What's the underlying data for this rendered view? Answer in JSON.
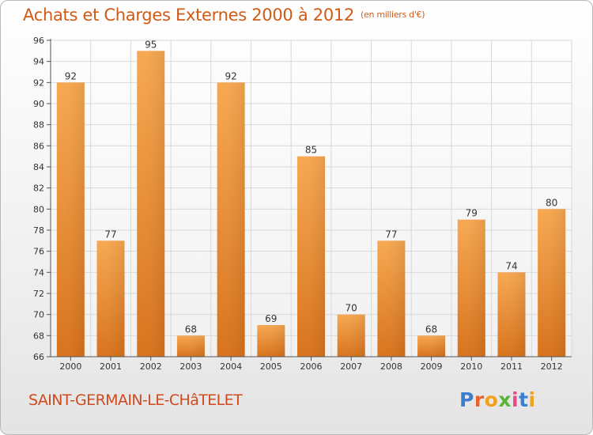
{
  "title": "Achats et Charges Externes 2000 à 2012",
  "subtitle": "(en milliers d'€)",
  "place_name": "SAINT-GERMAIN-LE-CHâTELET",
  "logo_text": "Proxiti",
  "colors": {
    "bar_light": "#f8a850",
    "bar_dark": "#d9731c",
    "title": "#d05a16",
    "grid": "#d8d8d8"
  },
  "chart_data": {
    "type": "bar",
    "title": "Achats et Charges Externes 2000 à 2012",
    "subtitle": "(en milliers d'€)",
    "categories": [
      "2000",
      "2001",
      "2002",
      "2003",
      "2004",
      "2005",
      "2006",
      "2007",
      "2008",
      "2009",
      "2010",
      "2011",
      "2012"
    ],
    "values": [
      92,
      77,
      95,
      68,
      92,
      69,
      85,
      70,
      77,
      68,
      79,
      74,
      80
    ],
    "ylim": [
      66,
      96
    ],
    "yticks": [
      66,
      68,
      70,
      72,
      74,
      76,
      78,
      80,
      82,
      84,
      86,
      88,
      90,
      92,
      94,
      96
    ],
    "grid": true,
    "data_labels": true
  }
}
